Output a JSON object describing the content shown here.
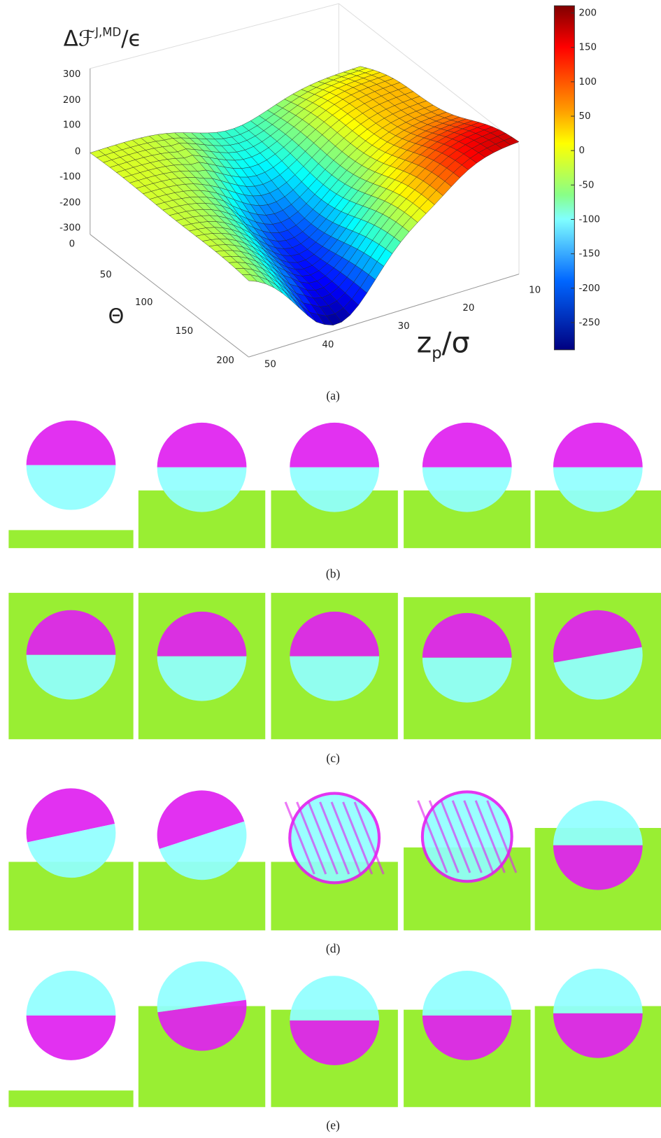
{
  "figure": {
    "plot": {
      "zlabel": {
        "main": "Δℱ",
        "sup": "J,MD",
        "tail": "/ϵ"
      },
      "xlabel": "Θ",
      "ylabel": {
        "main": "z",
        "sub": "p",
        "tail": "/σ"
      },
      "zticks": [
        300,
        200,
        100,
        0,
        -100,
        -200,
        -300
      ],
      "thetaticks": [
        0,
        50,
        100,
        150,
        200
      ],
      "zpticks": [
        50,
        40,
        30,
        20,
        10
      ],
      "colorbar_ticks": [
        200,
        150,
        100,
        50,
        0,
        -50,
        -100,
        -150,
        -200,
        -250
      ]
    },
    "captions": [
      "(a)",
      "(b)",
      "(c)",
      "(d)",
      "(e)"
    ]
  }
}
